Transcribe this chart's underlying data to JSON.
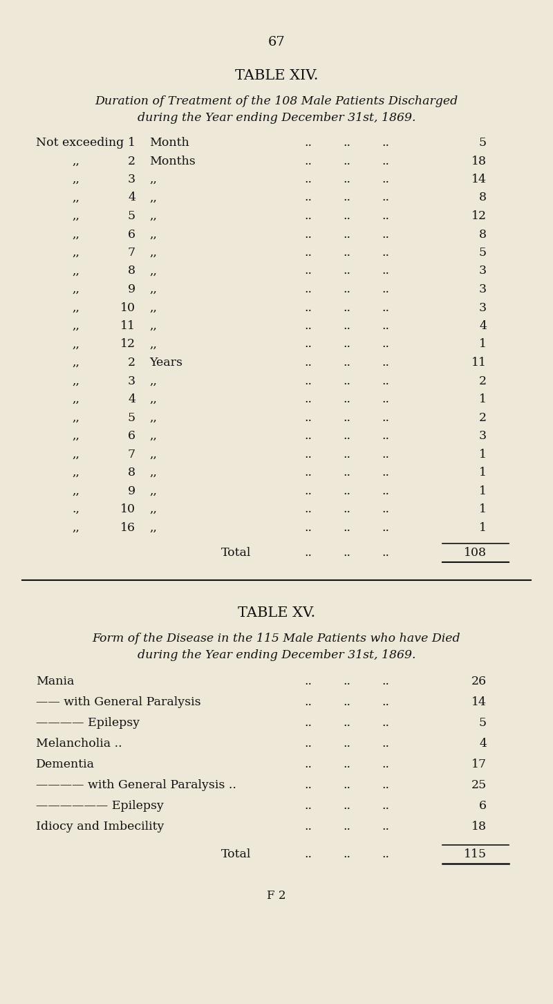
{
  "bg_color": "#ede8d8",
  "page_number": "67",
  "table14_title": "TABLE XIV.",
  "table14_subtitle_line1": "Duration of Treatment of the 108 Male Patients Discharged",
  "table14_subtitle_line2": "during the Year ending December 31st, 1869.",
  "table14_rows": [
    {
      "prefix": "Not exceeding",
      "num": "1",
      "unit": "Month",
      "value": "5"
    },
    {
      "prefix": ",,",
      "num": "2",
      "unit": "Months",
      "value": "18"
    },
    {
      "prefix": ",,",
      "num": "3",
      "unit": ",,",
      "value": "14"
    },
    {
      "prefix": ",,",
      "num": "4",
      "unit": ",,",
      "value": "8"
    },
    {
      "prefix": ",,",
      "num": "5",
      "unit": ",,",
      "value": "12"
    },
    {
      "prefix": ",,",
      "num": "6",
      "unit": ",,",
      "value": "8"
    },
    {
      "prefix": ",,",
      "num": "7",
      "unit": ",,",
      "value": "5"
    },
    {
      "prefix": ",,",
      "num": "8",
      "unit": ",,",
      "value": "3"
    },
    {
      "prefix": ",,",
      "num": "9",
      "unit": ",,",
      "value": "3"
    },
    {
      "prefix": ",,",
      "num": "10",
      "unit": ",,",
      "value": "3"
    },
    {
      "prefix": ",,",
      "num": "11",
      "unit": ",,",
      "value": "4"
    },
    {
      "prefix": ",,",
      "num": "12",
      "unit": ",,",
      "value": "1"
    },
    {
      "prefix": ",,",
      "num": "2",
      "unit": "Years",
      "value": "11"
    },
    {
      "prefix": ",,",
      "num": "3",
      "unit": ",,",
      "value": "2"
    },
    {
      "prefix": ",,",
      "num": "4",
      "unit": ",,",
      "value": "1"
    },
    {
      "prefix": ",,",
      "num": "5",
      "unit": ",,",
      "value": "2"
    },
    {
      "prefix": ",,",
      "num": "6",
      "unit": ",,",
      "value": "3"
    },
    {
      "prefix": ",,",
      "num": "7",
      "unit": ",,",
      "value": "1"
    },
    {
      "prefix": ",,",
      "num": "8",
      "unit": ",,",
      "value": "1"
    },
    {
      "prefix": ",,",
      "num": "9",
      "unit": ",,",
      "value": "1"
    },
    {
      "prefix": ".,",
      "num": "10",
      "unit": ",,",
      "value": "1"
    },
    {
      "prefix": ",,",
      "num": "16",
      "unit": ",,",
      "value": "1"
    }
  ],
  "table14_total_value": "108",
  "table15_title": "TABLE XV.",
  "table15_subtitle_line1": "Form of the Disease in the 115 Male Patients who have Died",
  "table15_subtitle_line2": "during the Year ending December 31st, 1869.",
  "table15_rows": [
    {
      "label": "Mania",
      "dots": ".. .. ..",
      "value": "26"
    },
    {
      "label": "—— with General Paralysis",
      "dots": ".. .. ..",
      "value": "14"
    },
    {
      "label": "———— Epilepsy",
      "dots": ".. .. ..",
      "value": "5"
    },
    {
      "label": "Melancholia ..",
      "dots": ".. .. ..",
      "value": "4"
    },
    {
      "label": "Dementia",
      "dots": ".. .. ..",
      "value": "17"
    },
    {
      "label": "———— with General Paralysis ..",
      "dots": ".. ..",
      "value": "25"
    },
    {
      "label": "—————— Epilepsy",
      "dots": ".. .. ..",
      "value": "6"
    },
    {
      "label": "Idiocy and Imbecility",
      "dots": ".. .. ..",
      "value": "18"
    }
  ],
  "table15_total_value": "115",
  "footer": "F 2",
  "text_color": "#111111"
}
